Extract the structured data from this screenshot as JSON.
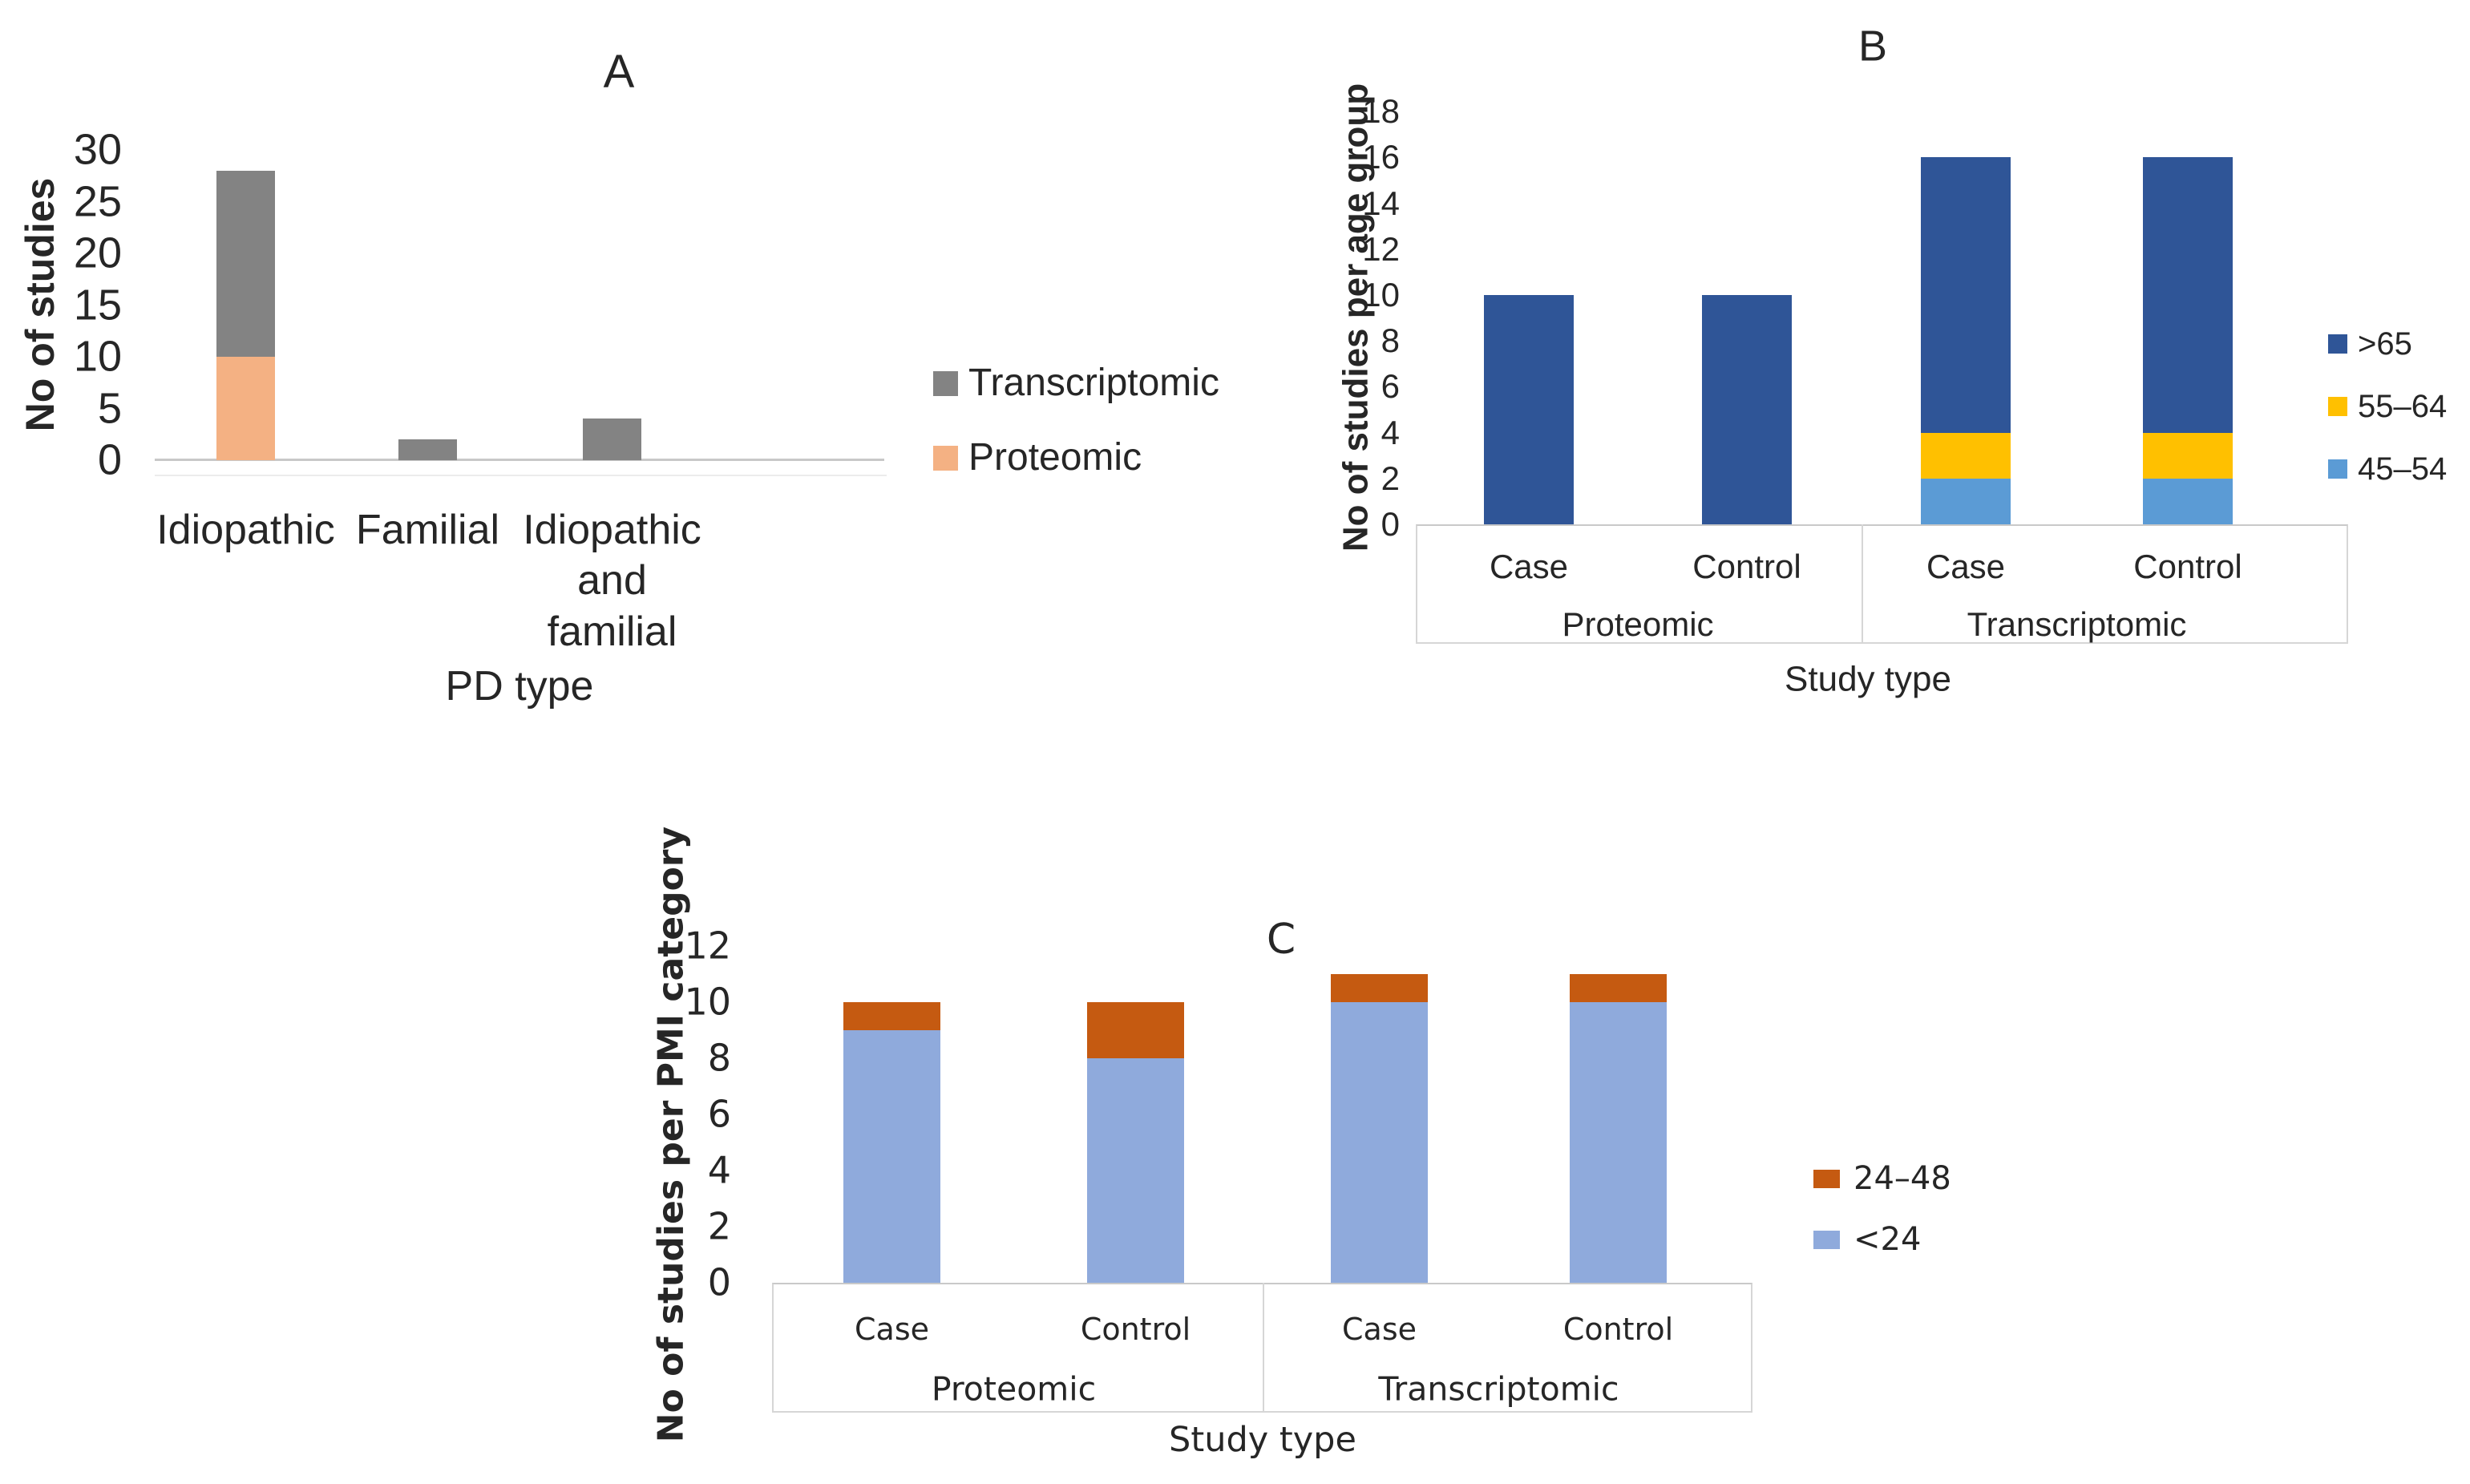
{
  "page": {
    "background": "#FFFFFF",
    "text_color": "#262626",
    "axis_line_color": "#D6D6D6"
  },
  "chart_data": [
    {
      "panel": "A",
      "type": "bar",
      "stacked": true,
      "title": "A",
      "ylabel": "No of studies",
      "xlabel": "PD type",
      "ylim": [
        0,
        30
      ],
      "yticks": [
        0,
        5,
        10,
        15,
        20,
        25,
        30
      ],
      "grid": false,
      "legend_position": "right",
      "categories": [
        "Idiopathic",
        "Familial",
        "Idiopathic\nand\nfamilial"
      ],
      "series": [
        {
          "name": "Proteomic",
          "color": "#F4B183",
          "values": [
            10,
            0,
            0
          ]
        },
        {
          "name": "Transcriptomic",
          "color": "#838383",
          "values": [
            18,
            2,
            4
          ]
        }
      ],
      "totals": [
        28,
        2,
        4
      ],
      "legend": {
        "items": [
          {
            "label": "Transcriptomic",
            "color": "#838383"
          },
          {
            "label": "Proteomic",
            "color": "#F4B183"
          }
        ]
      }
    },
    {
      "panel": "B",
      "type": "bar",
      "stacked": true,
      "title": "B",
      "ylabel": "No of studies per age group",
      "xlabel": "Study type",
      "ylim": [
        0,
        18
      ],
      "yticks": [
        0,
        2,
        4,
        6,
        8,
        10,
        12,
        14,
        16,
        18
      ],
      "grid": false,
      "legend_position": "right",
      "groups": [
        {
          "label": "Proteomic"
        },
        {
          "label": "Transcriptomic"
        }
      ],
      "categories": [
        "Case",
        "Control",
        "Case",
        "Control"
      ],
      "series": [
        {
          "name": "45–54",
          "color": "#5B9BD5",
          "values": [
            0,
            0,
            2,
            2
          ]
        },
        {
          "name": "55–64",
          "color": "#FFC000",
          "values": [
            0,
            0,
            2,
            2
          ]
        },
        {
          "name": ">65",
          "color": "#2F5597",
          "values": [
            10,
            10,
            12,
            12
          ]
        }
      ],
      "totals": [
        10,
        10,
        16,
        16
      ],
      "legend": {
        "items": [
          {
            "label": ">65",
            "color": "#2F5597"
          },
          {
            "label": "55–64",
            "color": "#FFC000"
          },
          {
            "label": "45–54",
            "color": "#5B9BD5"
          }
        ]
      }
    },
    {
      "panel": "C",
      "type": "bar",
      "stacked": true,
      "title": "C",
      "ylabel": "No of studies per PMI category",
      "xlabel": "Study type",
      "ylim": [
        0,
        12
      ],
      "yticks": [
        0,
        2,
        4,
        6,
        8,
        10,
        12
      ],
      "grid": false,
      "legend_position": "right",
      "groups": [
        {
          "label": "Proteomic"
        },
        {
          "label": "Transcriptomic"
        }
      ],
      "categories": [
        "Case",
        "Control",
        "Case",
        "Control"
      ],
      "series": [
        {
          "name": "<24",
          "color": "#8FAADC",
          "values": [
            9,
            8,
            10,
            10
          ]
        },
        {
          "name": "24–48",
          "color": "#C55A11",
          "values": [
            1,
            2,
            1,
            1
          ]
        }
      ],
      "totals": [
        10,
        10,
        11,
        11
      ],
      "legend": {
        "items": [
          {
            "label": "24–48",
            "color": "#C55A11"
          },
          {
            "label": "<24",
            "color": "#8FAADC"
          }
        ]
      }
    }
  ]
}
